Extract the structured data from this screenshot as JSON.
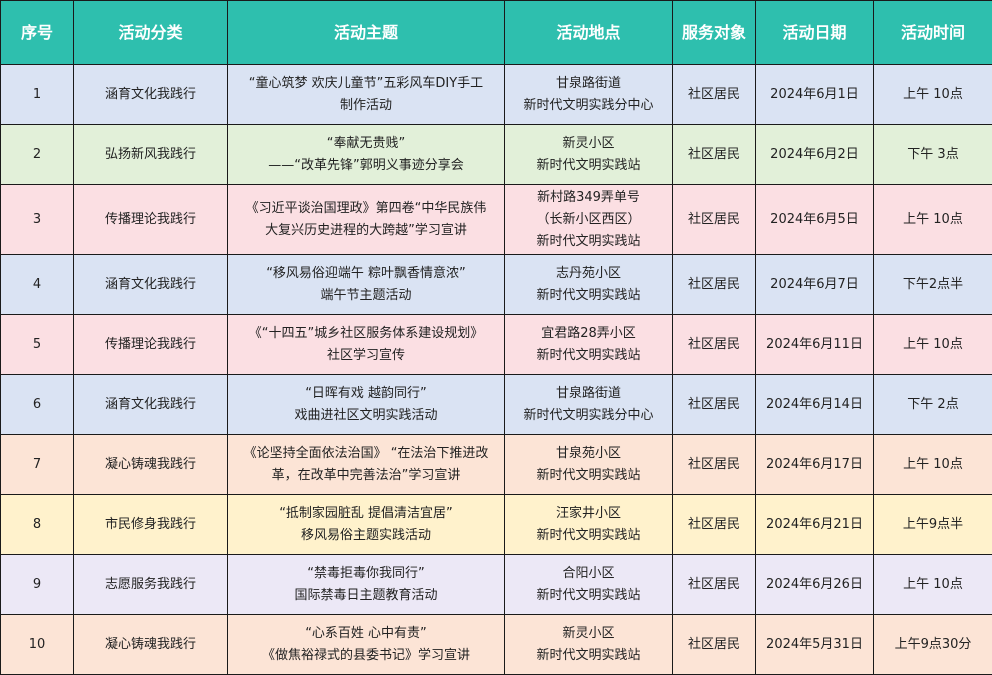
{
  "colors": {
    "header": "#2ebfae",
    "blue": "#dae3f3",
    "green": "#e2f0d9",
    "pink": "#fbdfe3",
    "peach": "#fce4d6",
    "yellow": "#fff2cc",
    "lavender": "#ece8f6"
  },
  "headers": [
    "序号",
    "活动分类",
    "活动主题",
    "活动地点",
    "服务对象",
    "活动日期",
    "活动时间"
  ],
  "rows": [
    {
      "no": "1",
      "category": "涵育文化我践行",
      "theme": [
        "“童心筑梦 欢庆儿童节”五彩风车DIY手工",
        "制作活动"
      ],
      "place": [
        "甘泉路街道",
        "新时代文明实践分中心"
      ],
      "target": "社区居民",
      "date": "2024年6月1日",
      "time": "上午 10点",
      "color": "blue"
    },
    {
      "no": "2",
      "category": "弘扬新风我践行",
      "theme": [
        "“奉献无贵贱”",
        "——“改革先锋”郭明义事迹分享会"
      ],
      "place": [
        "新灵小区",
        "新时代文明实践站"
      ],
      "target": "社区居民",
      "date": "2024年6月2日",
      "time": "下午 3点",
      "color": "green"
    },
    {
      "no": "3",
      "category": "传播理论我践行",
      "theme": [
        "《习近平谈治国理政》第四卷“中华民族伟",
        "大复兴历史进程的大跨越”学习宣讲"
      ],
      "place": [
        "新村路349弄单号",
        "（长新小区西区）",
        "新时代文明实践站"
      ],
      "target": "社区居民",
      "date": "2024年6月5日",
      "time": "上午 10点",
      "color": "pink"
    },
    {
      "no": "4",
      "category": "涵育文化我践行",
      "theme": [
        "“移风易俗迎端午 粽叶飘香情意浓”",
        "端午节主题活动"
      ],
      "place": [
        "志丹苑小区",
        "新时代文明实践站"
      ],
      "target": "社区居民",
      "date": "2024年6月7日",
      "time": "下午2点半",
      "color": "blue"
    },
    {
      "no": "5",
      "category": "传播理论我践行",
      "theme": [
        "《“十四五”城乡社区服务体系建设规划》",
        "社区学习宣传"
      ],
      "place": [
        "宜君路28弄小区",
        "新时代文明实践站"
      ],
      "target": "社区居民",
      "date": "2024年6月11日",
      "time": "上午 10点",
      "color": "pink"
    },
    {
      "no": "6",
      "category": "涵育文化我践行",
      "theme": [
        "“日晖有戏 越韵同行”",
        "戏曲进社区文明实践活动"
      ],
      "place": [
        "甘泉路街道",
        "新时代文明实践分中心"
      ],
      "target": "社区居民",
      "date": "2024年6月14日",
      "time": "下午 2点",
      "color": "blue"
    },
    {
      "no": "7",
      "category": "凝心铸魂我践行",
      "theme": [
        "《论坚持全面依法治国》 “在法治下推进改",
        "革，在改革中完善法治”学习宣讲"
      ],
      "place": [
        "甘泉苑小区",
        "新时代文明实践站"
      ],
      "target": "社区居民",
      "date": "2024年6月17日",
      "time": "上午 10点",
      "color": "peach"
    },
    {
      "no": "8",
      "category": "市民修身我践行",
      "theme": [
        "“抵制家园脏乱 提倡清洁宜居”",
        "移风易俗主题实践活动"
      ],
      "place": [
        "汪家井小区",
        "新时代文明实践站"
      ],
      "target": "社区居民",
      "date": "2024年6月21日",
      "time": "上午9点半",
      "color": "yellow"
    },
    {
      "no": "9",
      "category": "志愿服务我践行",
      "theme": [
        "“禁毒拒毒你我同行”",
        "国际禁毒日主题教育活动"
      ],
      "place": [
        "合阳小区",
        "新时代文明实践站"
      ],
      "target": "社区居民",
      "date": "2024年6月26日",
      "time": "上午 10点",
      "color": "lav"
    },
    {
      "no": "10",
      "category": "凝心铸魂我践行",
      "theme": [
        "“心系百姓 心中有责”",
        "《做焦裕禄式的县委书记》学习宣讲"
      ],
      "place": [
        "新灵小区",
        "新时代文明实践站"
      ],
      "target": "社区居民",
      "date": "2024年5月31日",
      "time": "上午9点30分",
      "color": "peach"
    }
  ]
}
